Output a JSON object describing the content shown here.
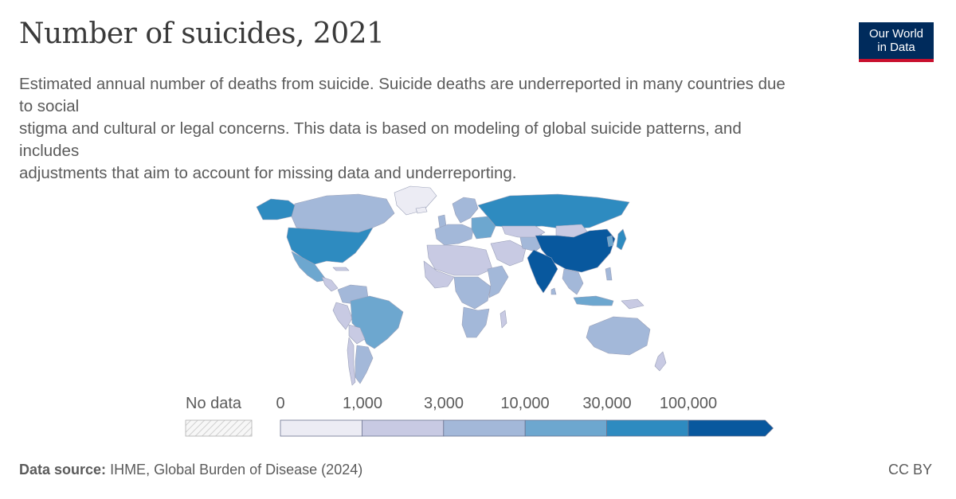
{
  "title": "Number of suicides, 2021",
  "logo": {
    "line1": "Our World",
    "line2": "in Data"
  },
  "subtitle_lines": [
    "Estimated annual number of deaths from suicide. Suicide deaths are underreported in many countries due",
    "to social",
    "stigma and cultural or legal concerns. This data is based on modeling of global suicide patterns, and",
    "includes",
    "adjustments that aim to account for missing data and underreporting."
  ],
  "legend": {
    "no_data_label": "No data",
    "ticks": [
      "0",
      "1,000",
      "3,000",
      "10,000",
      "30,000",
      "100,000"
    ],
    "colors": [
      "#ececf4",
      "#c8cae3",
      "#a3b8d9",
      "#6da7cf",
      "#2e8bc0",
      "#08589e"
    ],
    "nodata_color": "#f4f4f4"
  },
  "map_colors": {
    "ocean": "#ffffff",
    "border": "#9aa0b8",
    "bin0": "#ececf4",
    "bin1": "#c8cae3",
    "bin2": "#a3b8d9",
    "bin3": "#6da7cf",
    "bin4": "#2e8bc0",
    "bin5": "#08589e"
  },
  "footer": {
    "source_label": "Data source:",
    "source_text": "IHME, Global Burden of Disease (2024)",
    "license": "CC BY"
  }
}
